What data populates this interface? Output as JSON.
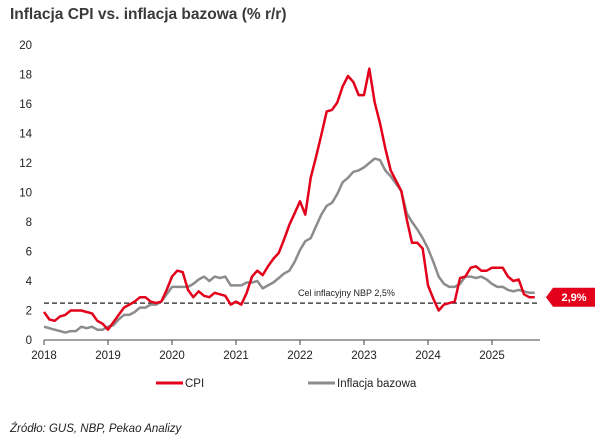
{
  "title": "Inflacja CPI vs. inflacja bazowa (% r/r)",
  "source": "Źródło: GUS, NBP, Pekao Analizy",
  "colors": {
    "cpi": "#e3001b",
    "core": "#8c8c8c",
    "target": "#222222",
    "badge": "#e3001b"
  },
  "chart_data": {
    "type": "line",
    "title": "Inflacja CPI vs. inflacja bazowa (% r/r)",
    "xlabel": "",
    "ylabel": "",
    "xlim": [
      2018,
      2025.75
    ],
    "ylim": [
      0,
      20
    ],
    "yticks": [
      0,
      2,
      4,
      6,
      8,
      10,
      12,
      14,
      16,
      18,
      20
    ],
    "xticks": [
      2018,
      2019,
      2020,
      2021,
      2022,
      2023,
      2024,
      2025
    ],
    "grid": false,
    "legend_position": "bottom",
    "series": [
      {
        "name": "CPI",
        "x": [
          2018,
          2018.083,
          2018.167,
          2018.25,
          2018.333,
          2018.417,
          2018.5,
          2018.583,
          2018.667,
          2018.75,
          2018.833,
          2018.917,
          2019,
          2019.083,
          2019.167,
          2019.25,
          2019.333,
          2019.417,
          2019.5,
          2019.583,
          2019.667,
          2019.75,
          2019.833,
          2019.917,
          2020,
          2020.083,
          2020.167,
          2020.25,
          2020.333,
          2020.417,
          2020.5,
          2020.583,
          2020.667,
          2020.75,
          2020.833,
          2020.917,
          2021,
          2021.083,
          2021.167,
          2021.25,
          2021.333,
          2021.417,
          2021.5,
          2021.583,
          2021.667,
          2021.75,
          2021.833,
          2021.917,
          2022,
          2022.083,
          2022.167,
          2022.25,
          2022.333,
          2022.417,
          2022.5,
          2022.583,
          2022.667,
          2022.75,
          2022.833,
          2022.917,
          2023,
          2023.083,
          2023.167,
          2023.25,
          2023.333,
          2023.417,
          2023.5,
          2023.583,
          2023.667,
          2023.75,
          2023.833,
          2023.917,
          2024,
          2024.083,
          2024.167,
          2024.25,
          2024.333,
          2024.417,
          2024.5,
          2024.583,
          2024.667,
          2024.75,
          2024.833,
          2024.917,
          2025,
          2025.083,
          2025.167,
          2025.25,
          2025.333,
          2025.417,
          2025.5,
          2025.583,
          2025.667
        ],
        "values": [
          1.9,
          1.4,
          1.3,
          1.6,
          1.7,
          2.0,
          2.0,
          2.0,
          1.9,
          1.8,
          1.3,
          1.1,
          0.7,
          1.2,
          1.7,
          2.2,
          2.4,
          2.6,
          2.9,
          2.9,
          2.6,
          2.5,
          2.6,
          3.4,
          4.3,
          4.7,
          4.6,
          3.4,
          2.9,
          3.3,
          3.0,
          2.9,
          3.2,
          3.1,
          3.0,
          2.4,
          2.6,
          2.4,
          3.2,
          4.3,
          4.7,
          4.4,
          5.0,
          5.5,
          5.9,
          6.8,
          7.8,
          8.6,
          9.4,
          8.5,
          11.0,
          12.4,
          13.9,
          15.5,
          15.6,
          16.1,
          17.2,
          17.9,
          17.5,
          16.6,
          16.6,
          18.4,
          16.1,
          14.7,
          13.0,
          11.5,
          10.8,
          10.1,
          8.2,
          6.6,
          6.6,
          6.2,
          3.7,
          2.8,
          2.0,
          2.4,
          2.5,
          2.6,
          4.2,
          4.3,
          4.9,
          5.0,
          4.7,
          4.7,
          4.9,
          4.9,
          4.9,
          4.3,
          4.0,
          4.1,
          3.1,
          2.9,
          2.9
        ]
      },
      {
        "name": "Inflacja bazowa",
        "x": [
          2018,
          2018.083,
          2018.167,
          2018.25,
          2018.333,
          2018.417,
          2018.5,
          2018.583,
          2018.667,
          2018.75,
          2018.833,
          2018.917,
          2019,
          2019.083,
          2019.167,
          2019.25,
          2019.333,
          2019.417,
          2019.5,
          2019.583,
          2019.667,
          2019.75,
          2019.833,
          2019.917,
          2020,
          2020.083,
          2020.167,
          2020.25,
          2020.333,
          2020.417,
          2020.5,
          2020.583,
          2020.667,
          2020.75,
          2020.833,
          2020.917,
          2021,
          2021.083,
          2021.167,
          2021.25,
          2021.333,
          2021.417,
          2021.5,
          2021.583,
          2021.667,
          2021.75,
          2021.833,
          2021.917,
          2022,
          2022.083,
          2022.167,
          2022.25,
          2022.333,
          2022.417,
          2022.5,
          2022.583,
          2022.667,
          2022.75,
          2022.833,
          2022.917,
          2023,
          2023.083,
          2023.167,
          2023.25,
          2023.333,
          2023.417,
          2023.5,
          2023.583,
          2023.667,
          2023.75,
          2023.833,
          2023.917,
          2024,
          2024.083,
          2024.167,
          2024.25,
          2024.333,
          2024.417,
          2024.5,
          2024.583,
          2024.667,
          2024.75,
          2024.833,
          2024.917,
          2025,
          2025.083,
          2025.167,
          2025.25,
          2025.333,
          2025.417,
          2025.5,
          2025.583,
          2025.667
        ],
        "values": [
          0.9,
          0.8,
          0.7,
          0.6,
          0.5,
          0.6,
          0.6,
          0.9,
          0.8,
          0.9,
          0.7,
          0.7,
          0.9,
          1.0,
          1.4,
          1.7,
          1.7,
          1.9,
          2.2,
          2.2,
          2.4,
          2.4,
          2.6,
          3.1,
          3.6,
          3.6,
          3.6,
          3.6,
          3.8,
          4.1,
          4.3,
          4.0,
          4.3,
          4.2,
          4.3,
          3.7,
          3.7,
          3.7,
          3.9,
          3.9,
          4.0,
          3.5,
          3.7,
          3.9,
          4.2,
          4.5,
          4.7,
          5.3,
          6.1,
          6.7,
          6.9,
          7.7,
          8.5,
          9.1,
          9.3,
          9.9,
          10.7,
          11.0,
          11.4,
          11.5,
          11.7,
          12.0,
          12.3,
          12.2,
          11.5,
          11.1,
          10.6,
          10.1,
          8.6,
          8.0,
          7.5,
          6.9,
          6.2,
          5.3,
          4.3,
          3.8,
          3.6,
          3.6,
          3.8,
          4.3,
          4.3,
          4.2,
          4.3,
          4.1,
          3.8,
          3.6,
          3.6,
          3.4,
          3.3,
          3.4,
          3.3,
          3.2,
          3.2
        ]
      }
    ],
    "reference_line": {
      "value": 2.5,
      "label": "Cel inflacyjny NBP 2,5%"
    },
    "end_label": {
      "series": "CPI",
      "value": 2.9,
      "label": "2,9%"
    },
    "legend": [
      "CPI",
      "Inflacja bazowa"
    ]
  }
}
